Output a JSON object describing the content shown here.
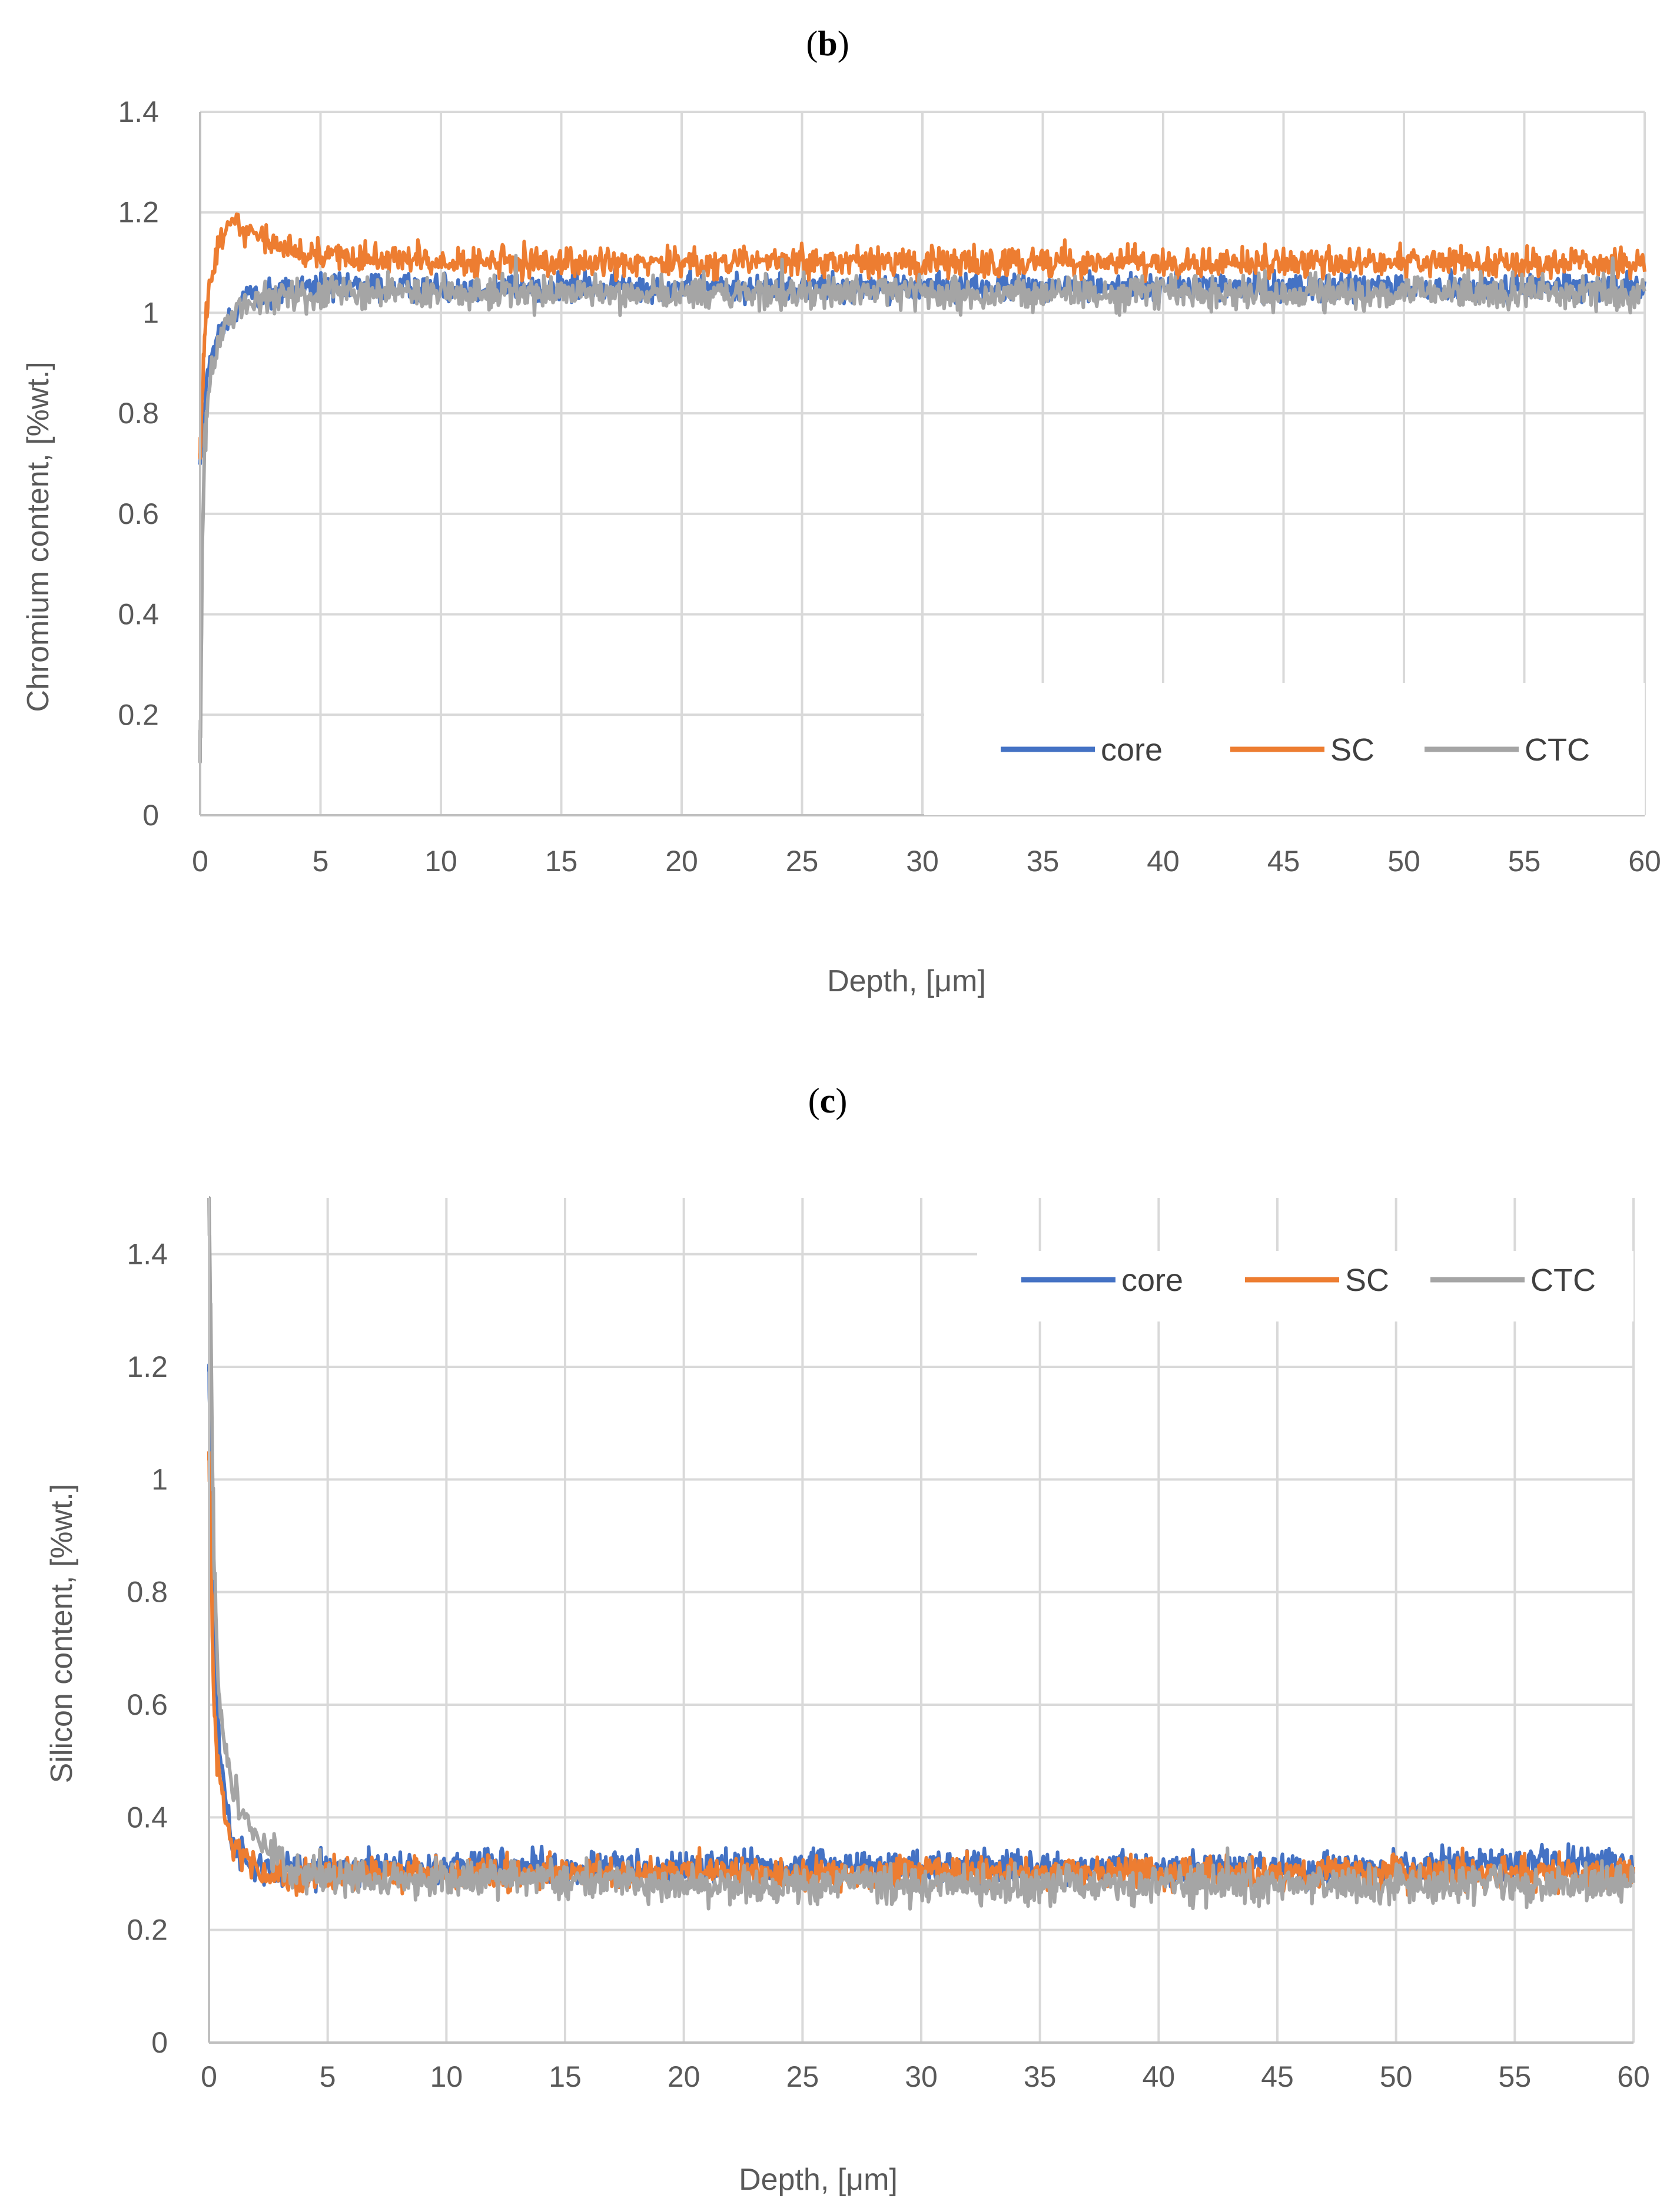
{
  "chart_data": [
    {
      "type": "line",
      "panel": "b",
      "title_open": "(",
      "title_letter": "b",
      "title_close": ")",
      "xlabel": "Depth, [μm]",
      "ylabel": "Chromium content, [%wt.]",
      "xlim": [
        0,
        60
      ],
      "ylim": [
        0,
        1.4
      ],
      "xticks": [
        "0",
        "5",
        "10",
        "15",
        "20",
        "25",
        "30",
        "35",
        "40",
        "45",
        "50",
        "55",
        "60"
      ],
      "yticks": [
        "0",
        "0.2",
        "0.4",
        "0.6",
        "0.8",
        "1",
        "1.2",
        "1.4"
      ],
      "grid": true,
      "legend_position": "bottom-right",
      "series": [
        {
          "name": "core",
          "color": "#4472C4",
          "points": [
            [
              0,
              0.7
            ],
            [
              0.2,
              0.83
            ],
            [
              0.4,
              0.9
            ],
            [
              0.7,
              0.95
            ],
            [
              1.0,
              0.98
            ],
            [
              1.5,
              1.01
            ],
            [
              2,
              1.03
            ],
            [
              3,
              1.04
            ],
            [
              4,
              1.05
            ],
            [
              5,
              1.05
            ],
            [
              8,
              1.05
            ],
            [
              10,
              1.05
            ],
            [
              15,
              1.05
            ],
            [
              20,
              1.05
            ],
            [
              25,
              1.05
            ],
            [
              30,
              1.05
            ],
            [
              35,
              1.05
            ],
            [
              40,
              1.05
            ],
            [
              45,
              1.05
            ],
            [
              50,
              1.05
            ],
            [
              55,
              1.05
            ],
            [
              60,
              1.05
            ]
          ],
          "noise": 0.022
        },
        {
          "name": "SC",
          "color": "#ED7D31",
          "points": [
            [
              0,
              0.72
            ],
            [
              0.2,
              0.98
            ],
            [
              0.4,
              1.06
            ],
            [
              0.7,
              1.12
            ],
            [
              1.0,
              1.16
            ],
            [
              1.5,
              1.18
            ],
            [
              2,
              1.16
            ],
            [
              3,
              1.14
            ],
            [
              4,
              1.12
            ],
            [
              6,
              1.11
            ],
            [
              8,
              1.11
            ],
            [
              10,
              1.1
            ],
            [
              15,
              1.1
            ],
            [
              20,
              1.1
            ],
            [
              25,
              1.1
            ],
            [
              30,
              1.1
            ],
            [
              35,
              1.1
            ],
            [
              40,
              1.1
            ],
            [
              45,
              1.1
            ],
            [
              50,
              1.1
            ],
            [
              55,
              1.1
            ],
            [
              60,
              1.1
            ]
          ],
          "noise": 0.022
        },
        {
          "name": "CTC",
          "color": "#A5A5A5",
          "points": [
            [
              0,
              0.12
            ],
            [
              0.1,
              0.55
            ],
            [
              0.2,
              0.75
            ],
            [
              0.4,
              0.86
            ],
            [
              0.7,
              0.93
            ],
            [
              1.0,
              0.97
            ],
            [
              1.5,
              1.0
            ],
            [
              2,
              1.02
            ],
            [
              3,
              1.03
            ],
            [
              5,
              1.04
            ],
            [
              8,
              1.04
            ],
            [
              10,
              1.04
            ],
            [
              15,
              1.04
            ],
            [
              20,
              1.04
            ],
            [
              25,
              1.04
            ],
            [
              30,
              1.04
            ],
            [
              35,
              1.04
            ],
            [
              40,
              1.04
            ],
            [
              45,
              1.04
            ],
            [
              50,
              1.04
            ],
            [
              55,
              1.04
            ],
            [
              60,
              1.04
            ]
          ],
          "noise": 0.025
        }
      ]
    },
    {
      "type": "line",
      "panel": "c",
      "title_open": "(",
      "title_letter": "c",
      "title_close": ")",
      "xlabel": "Depth, [μm]",
      "ylabel": "Silicon content, [%wt.]",
      "xlim": [
        0,
        60
      ],
      "ylim": [
        0,
        1.5
      ],
      "xticks": [
        "0",
        "5",
        "10",
        "15",
        "20",
        "25",
        "30",
        "35",
        "40",
        "45",
        "50",
        "55",
        "60"
      ],
      "yticks": [
        "0",
        "0.2",
        "0.4",
        "0.6",
        "0.8",
        "1",
        "1.2",
        "1.4"
      ],
      "grid": true,
      "legend_position": "top-right",
      "series": [
        {
          "name": "core",
          "color": "#4472C4",
          "points": [
            [
              0,
              1.2
            ],
            [
              0.2,
              0.75
            ],
            [
              0.4,
              0.55
            ],
            [
              0.7,
              0.42
            ],
            [
              1.0,
              0.36
            ],
            [
              1.5,
              0.33
            ],
            [
              2,
              0.31
            ],
            [
              3,
              0.3
            ],
            [
              5,
              0.31
            ],
            [
              10,
              0.31
            ],
            [
              15,
              0.31
            ],
            [
              20,
              0.31
            ],
            [
              25,
              0.31
            ],
            [
              30,
              0.31
            ],
            [
              35,
              0.31
            ],
            [
              40,
              0.31
            ],
            [
              45,
              0.31
            ],
            [
              50,
              0.31
            ],
            [
              55,
              0.32
            ],
            [
              60,
              0.32
            ]
          ],
          "noise": 0.022
        },
        {
          "name": "SC",
          "color": "#ED7D31",
          "points": [
            [
              0,
              1.05
            ],
            [
              0.2,
              0.6
            ],
            [
              0.4,
              0.48
            ],
            [
              0.7,
              0.4
            ],
            [
              1.0,
              0.36
            ],
            [
              1.5,
              0.33
            ],
            [
              2,
              0.31
            ],
            [
              3,
              0.3
            ],
            [
              5,
              0.3
            ],
            [
              10,
              0.3
            ],
            [
              15,
              0.3
            ],
            [
              20,
              0.3
            ],
            [
              25,
              0.3
            ],
            [
              30,
              0.3
            ],
            [
              35,
              0.3
            ],
            [
              40,
              0.3
            ],
            [
              45,
              0.3
            ],
            [
              50,
              0.3
            ],
            [
              55,
              0.3
            ],
            [
              60,
              0.3
            ]
          ],
          "noise": 0.022
        },
        {
          "name": "CTC",
          "color": "#A5A5A5",
          "points": [
            [
              0,
              1.5
            ],
            [
              0.2,
              0.9
            ],
            [
              0.4,
              0.62
            ],
            [
              0.7,
              0.52
            ],
            [
              1.0,
              0.45
            ],
            [
              1.5,
              0.4
            ],
            [
              2,
              0.36
            ],
            [
              3,
              0.32
            ],
            [
              4,
              0.3
            ],
            [
              5,
              0.29
            ],
            [
              10,
              0.29
            ],
            [
              15,
              0.29
            ],
            [
              20,
              0.28
            ],
            [
              25,
              0.28
            ],
            [
              30,
              0.28
            ],
            [
              35,
              0.28
            ],
            [
              40,
              0.28
            ],
            [
              45,
              0.28
            ],
            [
              50,
              0.28
            ],
            [
              55,
              0.28
            ],
            [
              60,
              0.28
            ]
          ],
          "noise": 0.025
        }
      ]
    }
  ]
}
